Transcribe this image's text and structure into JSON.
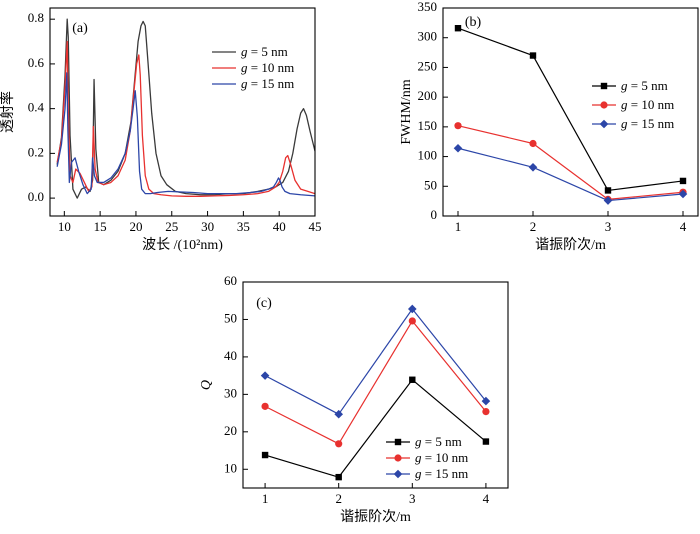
{
  "chart_data": [
    {
      "id": "a",
      "type": "line",
      "panel_label": "(a)",
      "xlabel": "波长 /(10²nm)",
      "ylabel": "透射率",
      "xlim": [
        8,
        45
      ],
      "ylim": [
        -0.08,
        0.85
      ],
      "xticks": [
        10,
        15,
        20,
        25,
        30,
        35,
        40,
        45
      ],
      "yticks": [
        0.0,
        0.2,
        0.4,
        0.6,
        0.8
      ],
      "ytick_labels": [
        "0.0",
        "0.2",
        "0.4",
        "0.6",
        "0.8"
      ],
      "legend_position": "top-right",
      "series": [
        {
          "name": "g = 5 nm",
          "color": "#3a3a3a",
          "x": [
            9.0,
            9.6,
            10.1,
            10.4,
            10.55,
            10.8,
            11.2,
            11.8,
            12.4,
            13.0,
            13.6,
            13.95,
            14.15,
            14.4,
            14.8,
            15.5,
            16.5,
            17.5,
            18.5,
            19.3,
            19.8,
            20.3,
            20.7,
            21.0,
            21.3,
            21.7,
            22.2,
            22.8,
            23.5,
            24.3,
            25.5,
            27,
            29,
            31,
            33,
            35,
            37,
            38.5,
            39.5,
            40.5,
            41.3,
            41.9,
            42.5,
            43.0,
            43.4,
            43.8,
            44.3,
            45.0
          ],
          "y": [
            0.15,
            0.27,
            0.55,
            0.8,
            0.72,
            0.28,
            0.04,
            0.0,
            0.04,
            0.05,
            0.03,
            0.08,
            0.53,
            0.22,
            0.07,
            0.06,
            0.08,
            0.12,
            0.2,
            0.34,
            0.52,
            0.7,
            0.77,
            0.79,
            0.77,
            0.6,
            0.38,
            0.2,
            0.1,
            0.06,
            0.03,
            0.02,
            0.015,
            0.015,
            0.02,
            0.02,
            0.03,
            0.04,
            0.05,
            0.07,
            0.12,
            0.2,
            0.31,
            0.38,
            0.4,
            0.37,
            0.3,
            0.21
          ]
        },
        {
          "name": "g = 10 nm",
          "color": "#e8312f",
          "x": [
            9.0,
            9.6,
            10.1,
            10.4,
            10.55,
            10.8,
            11.2,
            11.6,
            12.2,
            12.8,
            13.4,
            13.85,
            14.05,
            14.3,
            14.7,
            15.5,
            16.5,
            17.5,
            18.5,
            19.2,
            19.7,
            20.1,
            20.4,
            20.6,
            20.9,
            21.3,
            21.8,
            22.5,
            23.5,
            25,
            27,
            29,
            31,
            33,
            35,
            37,
            38.5,
            39.5,
            40.0,
            40.5,
            40.9,
            41.2,
            41.6,
            42.2,
            43.0,
            44.0,
            45.0
          ],
          "y": [
            0.16,
            0.26,
            0.5,
            0.7,
            0.4,
            0.1,
            0.07,
            0.13,
            0.11,
            0.07,
            0.03,
            0.05,
            0.32,
            0.13,
            0.07,
            0.06,
            0.07,
            0.1,
            0.17,
            0.3,
            0.47,
            0.6,
            0.64,
            0.55,
            0.28,
            0.1,
            0.04,
            0.02,
            0.015,
            0.01,
            0.008,
            0.008,
            0.01,
            0.012,
            0.015,
            0.02,
            0.03,
            0.05,
            0.07,
            0.12,
            0.18,
            0.19,
            0.15,
            0.08,
            0.04,
            0.03,
            0.02
          ]
        },
        {
          "name": "g = 15 nm",
          "color": "#2c46a8",
          "x": [
            9.0,
            9.6,
            10.1,
            10.35,
            10.5,
            10.7,
            11.0,
            11.5,
            12.0,
            12.6,
            13.2,
            13.75,
            13.95,
            14.2,
            14.6,
            15.5,
            16.5,
            17.5,
            18.5,
            19.2,
            19.6,
            19.9,
            20.2,
            20.5,
            20.8,
            21.3,
            22.0,
            23.0,
            24.5,
            26,
            28,
            30,
            32,
            34,
            36,
            37.5,
            38.5,
            39.2,
            39.6,
            39.9,
            40.1,
            40.4,
            40.8,
            41.5,
            43,
            45.0
          ],
          "y": [
            0.14,
            0.24,
            0.4,
            0.56,
            0.3,
            0.07,
            0.16,
            0.18,
            0.12,
            0.06,
            0.02,
            0.04,
            0.18,
            0.1,
            0.07,
            0.07,
            0.09,
            0.13,
            0.2,
            0.3,
            0.4,
            0.48,
            0.36,
            0.12,
            0.04,
            0.02,
            0.02,
            0.025,
            0.03,
            0.028,
            0.025,
            0.02,
            0.02,
            0.02,
            0.025,
            0.03,
            0.04,
            0.05,
            0.07,
            0.09,
            0.08,
            0.05,
            0.03,
            0.02,
            0.015,
            0.01
          ]
        }
      ]
    },
    {
      "id": "b",
      "type": "line",
      "panel_label": "(b)",
      "xlabel": "谐振阶次/m",
      "ylabel": "FWHM/nm",
      "xlim": [
        0.8,
        4.2
      ],
      "ylim": [
        0,
        350
      ],
      "xticks": [
        1,
        2,
        3,
        4
      ],
      "yticks": [
        0,
        50,
        100,
        150,
        200,
        250,
        300,
        350
      ],
      "legend_position": "right",
      "series": [
        {
          "name": "g = 5 nm",
          "color": "#000000",
          "marker": "square",
          "x": [
            1,
            2,
            3,
            4
          ],
          "values": [
            316,
            270,
            43,
            59
          ]
        },
        {
          "name": "g = 10 nm",
          "color": "#e8312f",
          "marker": "circle",
          "x": [
            1,
            2,
            3,
            4
          ],
          "values": [
            152,
            122,
            28,
            40
          ]
        },
        {
          "name": "g = 15 nm",
          "color": "#2c46a8",
          "marker": "diamond",
          "x": [
            1,
            2,
            3,
            4
          ],
          "values": [
            114,
            82,
            26,
            37
          ]
        }
      ]
    },
    {
      "id": "c",
      "type": "line",
      "panel_label": "(c)",
      "xlabel": "谐振阶次/m",
      "ylabel": "Q",
      "xlim": [
        0.7,
        4.3
      ],
      "ylim": [
        5,
        60
      ],
      "xticks": [
        1,
        2,
        3,
        4
      ],
      "yticks": [
        10,
        20,
        30,
        40,
        50,
        60
      ],
      "legend_position": "bottom-right",
      "series": [
        {
          "name": "g = 5 nm",
          "color": "#000000",
          "marker": "square",
          "x": [
            1,
            2,
            3,
            4
          ],
          "values": [
            13.8,
            7.9,
            33.9,
            17.4
          ]
        },
        {
          "name": "g = 10 nm",
          "color": "#e8312f",
          "marker": "circle",
          "x": [
            1,
            2,
            3,
            4
          ],
          "values": [
            26.8,
            16.8,
            49.6,
            25.4
          ]
        },
        {
          "name": "g = 15 nm",
          "color": "#2c46a8",
          "marker": "diamond",
          "x": [
            1,
            2,
            3,
            4
          ],
          "values": [
            35.0,
            24.7,
            52.8,
            28.2
          ]
        }
      ]
    }
  ]
}
